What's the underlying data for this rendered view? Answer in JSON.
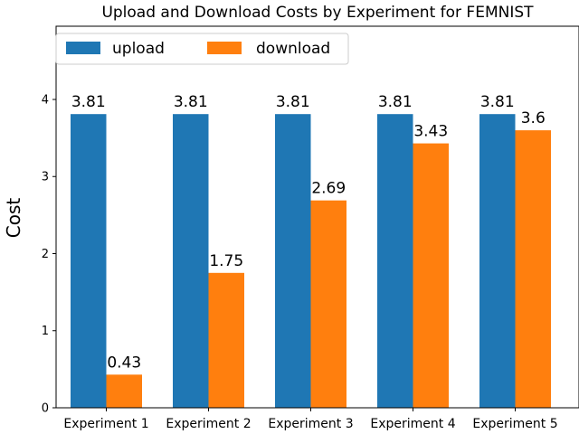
{
  "chart_data": {
    "type": "bar",
    "title": "Upload and Download Costs by Experiment for FEMNIST",
    "xlabel": "",
    "ylabel": "Cost",
    "categories": [
      "Experiment 1",
      "Experiment 2",
      "Experiment 3",
      "Experiment 4",
      "Experiment 5"
    ],
    "series": [
      {
        "name": "upload",
        "color": "#1f77b4",
        "values": [
          3.81,
          3.81,
          3.81,
          3.81,
          3.81
        ],
        "labels": [
          "3.81",
          "3.81",
          "3.81",
          "3.81",
          "3.81"
        ]
      },
      {
        "name": "download",
        "color": "#ff7f0e",
        "values": [
          0.43,
          1.75,
          2.69,
          3.43,
          3.6
        ],
        "labels": [
          "0.43",
          "1.75",
          "2.69",
          "3.43",
          "3.6"
        ]
      }
    ],
    "ylim": [
      0,
      4.95
    ],
    "yticks": [
      0,
      1,
      2,
      3,
      4
    ],
    "ytick_labels": [
      "0",
      "1",
      "2",
      "3",
      "4"
    ],
    "legend": {
      "position": "top-left",
      "columns": 2
    },
    "grid": false
  }
}
